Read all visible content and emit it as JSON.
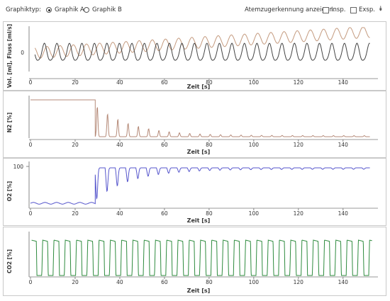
{
  "toolbar": {
    "graph_type_label": "Graphiktyp:",
    "option_a": "Graphik A",
    "option_b": "Graphik B",
    "selected": "Graphik A",
    "breath_marking_label": "Atemzugerkennung anzeigen:",
    "insp_label": "Insp.",
    "exsp_label": "Exsp.",
    "insp_checked": false,
    "exsp_checked": false,
    "collapse_icon": "double-chevron-down-icon"
  },
  "chart_data": [
    {
      "type": "line",
      "ylabel": "Vol. [ml], Fluss [ml/s]",
      "xlabel": "Zeit [s]",
      "xlim": [
        0,
        155
      ],
      "x_ticks": [
        "0",
        "20",
        "40",
        "60",
        "80",
        "100",
        "120",
        "140"
      ],
      "y_ticks": [
        "0"
      ],
      "grid": false,
      "series": [
        {
          "color": "#c49a7e",
          "values": "sinusoidal volume trace (~25 breaths), baseline drifting upward from about 0 to about +1.2 units"
        },
        {
          "color": "#444444",
          "values": "sinusoidal flow trace (~26 breaths) oscillating around 0"
        }
      ]
    },
    {
      "type": "line",
      "ylabel": "N2 [%]",
      "xlabel": "Zeit [s]",
      "xlim": [
        0,
        155
      ],
      "x_ticks": [
        "0",
        "20",
        "40",
        "60",
        "80",
        "100",
        "120",
        "140"
      ],
      "grid": false,
      "series": [
        {
          "color": "#b58a78",
          "values": "flat at high level until ~29 s, then step drop; decaying washout peaks to ~0 by 150 s"
        }
      ]
    },
    {
      "type": "line",
      "ylabel": "O2 [%]",
      "xlabel": "Zeit [s]",
      "xlim": [
        0,
        155
      ],
      "ylim": [
        0,
        100
      ],
      "y_ticks": [
        "100"
      ],
      "x_ticks": [
        "0",
        "20",
        "40",
        "60",
        "80",
        "100",
        "120",
        "140"
      ],
      "grid": false,
      "series": [
        {
          "color": "#5555cc",
          "values": "low (~21%) oscillating until ~29 s, then near 100% with dips diminishing over time"
        }
      ]
    },
    {
      "type": "line",
      "ylabel": "CO2 [%]",
      "xlabel": "Zeit [s]",
      "xlim": [
        0,
        155
      ],
      "x_ticks": [
        "0",
        "20",
        "40",
        "60",
        "80",
        "100",
        "120",
        "140"
      ],
      "grid": false,
      "series": [
        {
          "color": "#2e8b3e",
          "values": "square-wave capnogram, ~30 breaths, plateau ~5%, baseline 0"
        }
      ]
    }
  ]
}
